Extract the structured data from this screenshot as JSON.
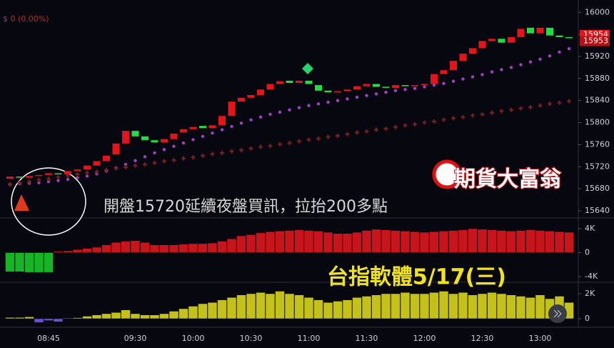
{
  "chart_data": [
    {
      "type": "candlestick",
      "header": "$ 0 (0.00%)",
      "annotations": [
        "開盤15720延續夜盤買訊，拉抬200多點",
        "台指軟體5/17(三)"
      ],
      "watermark": "期貨大富翁",
      "categories": [
        null,
        null,
        null,
        null,
        "08:45",
        null,
        null,
        null,
        null,
        null,
        null,
        null,
        null,
        "09:30",
        null,
        null,
        null,
        null,
        null,
        "10:00",
        null,
        null,
        null,
        null,
        null,
        "10:30",
        null,
        null,
        null,
        null,
        null,
        "11:00",
        null,
        null,
        null,
        null,
        null,
        "11:30",
        null,
        null,
        null,
        null,
        null,
        "12:00",
        null,
        null,
        null,
        null,
        null,
        "12:30",
        null,
        null,
        null,
        null,
        null,
        "13:00",
        null,
        null,
        null
      ],
      "open": [
        15698,
        15702,
        15700,
        15703,
        15705,
        15708,
        15706,
        15712,
        15715,
        15722,
        15730,
        15742,
        15762,
        15785,
        15775,
        15768,
        15764,
        15770,
        15782,
        15788,
        15794,
        15790,
        15795,
        15812,
        15838,
        15845,
        15850,
        15860,
        15870,
        15876,
        15872,
        15876,
        15868,
        15858,
        15855,
        15857,
        15860,
        15866,
        15870,
        15865,
        15863,
        15868,
        15866,
        15868,
        15870,
        15888,
        15895,
        15912,
        15925,
        15935,
        15948,
        15952,
        15945,
        15955,
        15972,
        15962,
        15972,
        15958,
        15955
      ],
      "close": [
        15702,
        15700,
        15703,
        15705,
        15708,
        15706,
        15712,
        15715,
        15722,
        15730,
        15740,
        15762,
        15785,
        15775,
        15768,
        15764,
        15770,
        15780,
        15788,
        15792,
        15790,
        15795,
        15812,
        15838,
        15845,
        15850,
        15860,
        15870,
        15875,
        15872,
        15876,
        15870,
        15858,
        15855,
        15857,
        15860,
        15866,
        15870,
        15865,
        15863,
        15868,
        15866,
        15868,
        15870,
        15888,
        15895,
        15912,
        15925,
        15935,
        15948,
        15952,
        15945,
        15955,
        15970,
        15962,
        15972,
        15958,
        15955,
        15954
      ],
      "up_color": "#e5141b",
      "down_color": "#1fe040",
      "series": [
        {
          "marker": "dot",
          "color": "#a23fc8",
          "values": [
            15688,
            15689,
            15690,
            15691,
            15693,
            15695,
            15697,
            15700,
            15703,
            15707,
            15712,
            15718,
            15724,
            15731,
            15738,
            15745,
            15751,
            15757,
            15763,
            15769,
            15775,
            15781,
            15787,
            15793,
            15799,
            15805,
            15810,
            15815,
            15819,
            15823,
            15827,
            15831,
            15834,
            15837,
            15840,
            15843,
            15846,
            15849,
            15852,
            15855,
            15858,
            15860,
            15862,
            15865,
            15868,
            15871,
            15875,
            15879,
            15883,
            15887,
            15892,
            15896,
            15900,
            15905,
            15910,
            15915,
            15921,
            15928,
            15934
          ]
        },
        {
          "marker": "cross",
          "color": "#7a1e22",
          "values": [
            15688,
            15691,
            15693,
            15696,
            15698,
            15701,
            15704,
            15706,
            15709,
            15711,
            15714,
            15717,
            15719,
            15722,
            15724,
            15727,
            15730,
            15732,
            15735,
            15737,
            15740,
            15743,
            15745,
            15748,
            15750,
            15753,
            15756,
            15758,
            15761,
            15763,
            15766,
            15769,
            15771,
            15774,
            15776,
            15779,
            15782,
            15784,
            15787,
            15789,
            15792,
            15795,
            15797,
            15800,
            15802,
            15805,
            15808,
            15810,
            15813,
            15815,
            15818,
            15821,
            15823,
            15826,
            15828,
            15831,
            15834,
            15836,
            15839
          ]
        }
      ],
      "price_labels": [
        15954,
        15953
      ],
      "ylim": [
        15627,
        16012
      ],
      "yticks": [
        16000,
        15960,
        15920,
        15880,
        15840,
        15800,
        15760,
        15720,
        15680,
        15640
      ]
    },
    {
      "type": "bar",
      "pos_color": "#c8141b",
      "neg_color": "#16b526",
      "values": [
        -3200,
        -3200,
        -3300,
        -3300,
        -3300,
        200,
        300,
        500,
        700,
        900,
        1300,
        1700,
        1900,
        2000,
        1700,
        1300,
        1300,
        1300,
        1400,
        1500,
        1500,
        1600,
        1900,
        2300,
        2800,
        3000,
        3300,
        3500,
        3600,
        3700,
        3800,
        3700,
        3600,
        3400,
        3200,
        3200,
        3400,
        3700,
        3900,
        3800,
        3700,
        3600,
        3500,
        3400,
        3500,
        3600,
        3700,
        3800,
        4000,
        3900,
        3800,
        3700,
        3600,
        3700,
        3800,
        3700,
        3600,
        3500,
        3400
      ],
      "ylim": [
        -4955,
        5194
      ],
      "yticks": [
        {
          "value": 4000,
          "label": "4K"
        },
        0,
        {
          "value": -4000,
          "label": "-4K"
        }
      ]
    },
    {
      "type": "bar",
      "pos_color": "#c4c21a",
      "neg_color": "#6a55c8",
      "values": [
        100,
        100,
        150,
        -300,
        -150,
        -250,
        50,
        80,
        200,
        300,
        400,
        500,
        700,
        400,
        300,
        300,
        400,
        600,
        800,
        1000,
        1200,
        1300,
        1500,
        1700,
        1900,
        2000,
        2100,
        2000,
        2200,
        2000,
        1900,
        1700,
        1500,
        1300,
        1400,
        1500,
        1700,
        1800,
        1900,
        2000,
        2000,
        2100,
        2000,
        2000,
        2100,
        2200,
        2000,
        2100,
        1900,
        2000,
        2100,
        2000,
        1900,
        1800,
        1700,
        1900,
        1600,
        1800,
        1300
      ],
      "ylim": [
        -686,
        2800
      ],
      "yticks": [
        {
          "value": 2000,
          "label": "2K"
        },
        0
      ]
    }
  ]
}
